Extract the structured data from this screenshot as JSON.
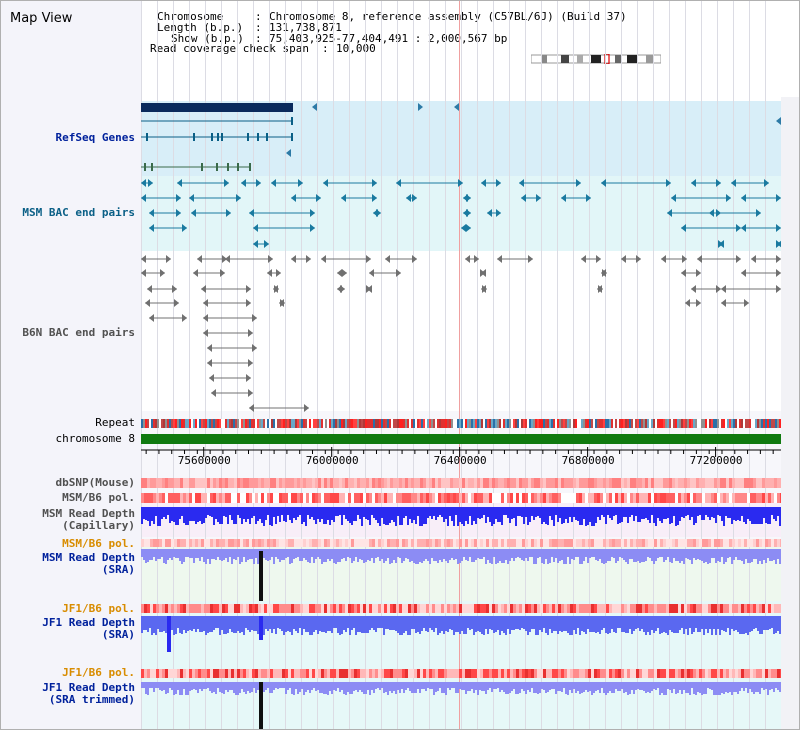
{
  "app_title": "Map View",
  "info": {
    "chromosome_label": "Chromosome",
    "chromosome_value": "Chromosome 8, reference assembly (C57BL/6J) (Build 37)",
    "length_label": "Length (b.p.)",
    "length_value": "131,738,871",
    "show_label": "Show (b.p.)",
    "show_value": "75,403,925-77,404,491 : 2,000,567 bp",
    "coverage_label": "Read coverage check span",
    "coverage_value": "10,000"
  },
  "tracks": [
    {
      "id": "refseq",
      "label": "RefSeq Genes",
      "color": "lbl-blue"
    },
    {
      "id": "msm_bac",
      "label": "MSM BAC end pairs",
      "color": "lbl-teal"
    },
    {
      "id": "b6n_bac",
      "label": "B6N BAC end pairs",
      "color": "lbl-gray"
    },
    {
      "id": "repeat",
      "label": "Repeat",
      "color": "lbl-black"
    },
    {
      "id": "chrom",
      "label": "chromosome 8",
      "color": "lbl-black"
    },
    {
      "id": "dbsnp",
      "label": "dbSNP(Mouse)",
      "color": "lbl-gray"
    },
    {
      "id": "msm_b6_pol_1",
      "label": "MSM/B6 pol.",
      "color": "lbl-gray"
    },
    {
      "id": "msm_depth_cap",
      "label": "MSM Read Depth",
      "sub": "(Capillary)",
      "color": "lbl-gray"
    },
    {
      "id": "msm_b6_pol_2",
      "label": "MSM/B6 pol.",
      "color": "lbl-orange"
    },
    {
      "id": "msm_depth_sra",
      "label": "MSM Read Depth",
      "sub": "(SRA)",
      "color": "lbl-blue"
    },
    {
      "id": "jf1_b6_pol_1",
      "label": "JF1/B6 pol.",
      "color": "lbl-orange"
    },
    {
      "id": "jf1_depth_sra",
      "label": "JF1 Read Depth",
      "sub": "(SRA)",
      "color": "lbl-blue"
    },
    {
      "id": "jf1_b6_pol_2",
      "label": "JF1/B6 pol.",
      "color": "lbl-orange"
    },
    {
      "id": "jf1_depth_trim",
      "label": "JF1 Read Depth",
      "sub": "(SRA trimmed)",
      "color": "lbl-blue"
    }
  ],
  "scale": {
    "ticks": [
      {
        "value": 75600000,
        "label": "75600000"
      },
      {
        "value": 76000000,
        "label": "76000000"
      },
      {
        "value": 76400000,
        "label": "76400000"
      },
      {
        "value": 76800000,
        "label": "76800000"
      },
      {
        "value": 77200000,
        "label": "77200000"
      }
    ]
  },
  "colors": {
    "refseq_bg": "#d8eef8",
    "msm_bac_bg": "#e2f6f8",
    "gene": "#0a5f86",
    "gene_block": "#0a2a5c",
    "chromosome_bar": "#107a10",
    "snp": "#ff8080",
    "depth_blue": "#2a2af0",
    "depth_light": "#8c8cf4",
    "depth_mid": "#5a68f0"
  }
}
